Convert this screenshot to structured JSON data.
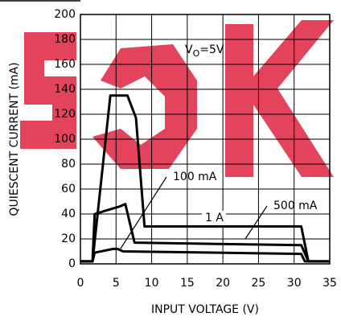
{
  "chart_data": {
    "type": "line",
    "xlabel": "INPUT VOLTAGE (V)",
    "ylabel": "QUIESCENT CURRENT (mA)",
    "annotation": {
      "main": "V",
      "sub": "O",
      "rest": "=5V"
    },
    "xlim": [
      0,
      35
    ],
    "xticks": [
      0,
      5,
      10,
      15,
      20,
      25,
      30,
      35
    ],
    "ylim": [
      0,
      200
    ],
    "yticks": [
      0,
      20,
      40,
      60,
      80,
      100,
      120,
      140,
      160,
      180,
      200
    ],
    "grid": true,
    "series": [
      {
        "name": "1 A",
        "color": "#000000",
        "x": [
          0,
          1.7,
          4.2,
          6.6,
          7.8,
          9,
          31,
          32,
          35
        ],
        "values": [
          2,
          2,
          135,
          135,
          117,
          30,
          30,
          2,
          2
        ]
      },
      {
        "name": "500 mA",
        "color": "#000000",
        "x": [
          0,
          1.7,
          2,
          5.5,
          6.3,
          7.6,
          31,
          32,
          35
        ],
        "values": [
          2,
          2,
          40,
          46,
          48,
          17,
          15,
          2,
          2
        ]
      },
      {
        "name": "100 mA",
        "color": "#000000",
        "x": [
          0,
          1.7,
          2,
          4.6,
          5.2,
          6,
          31,
          31.5,
          35
        ],
        "values": [
          2,
          2,
          9,
          12,
          12,
          10,
          8,
          2,
          2
        ]
      }
    ]
  }
}
